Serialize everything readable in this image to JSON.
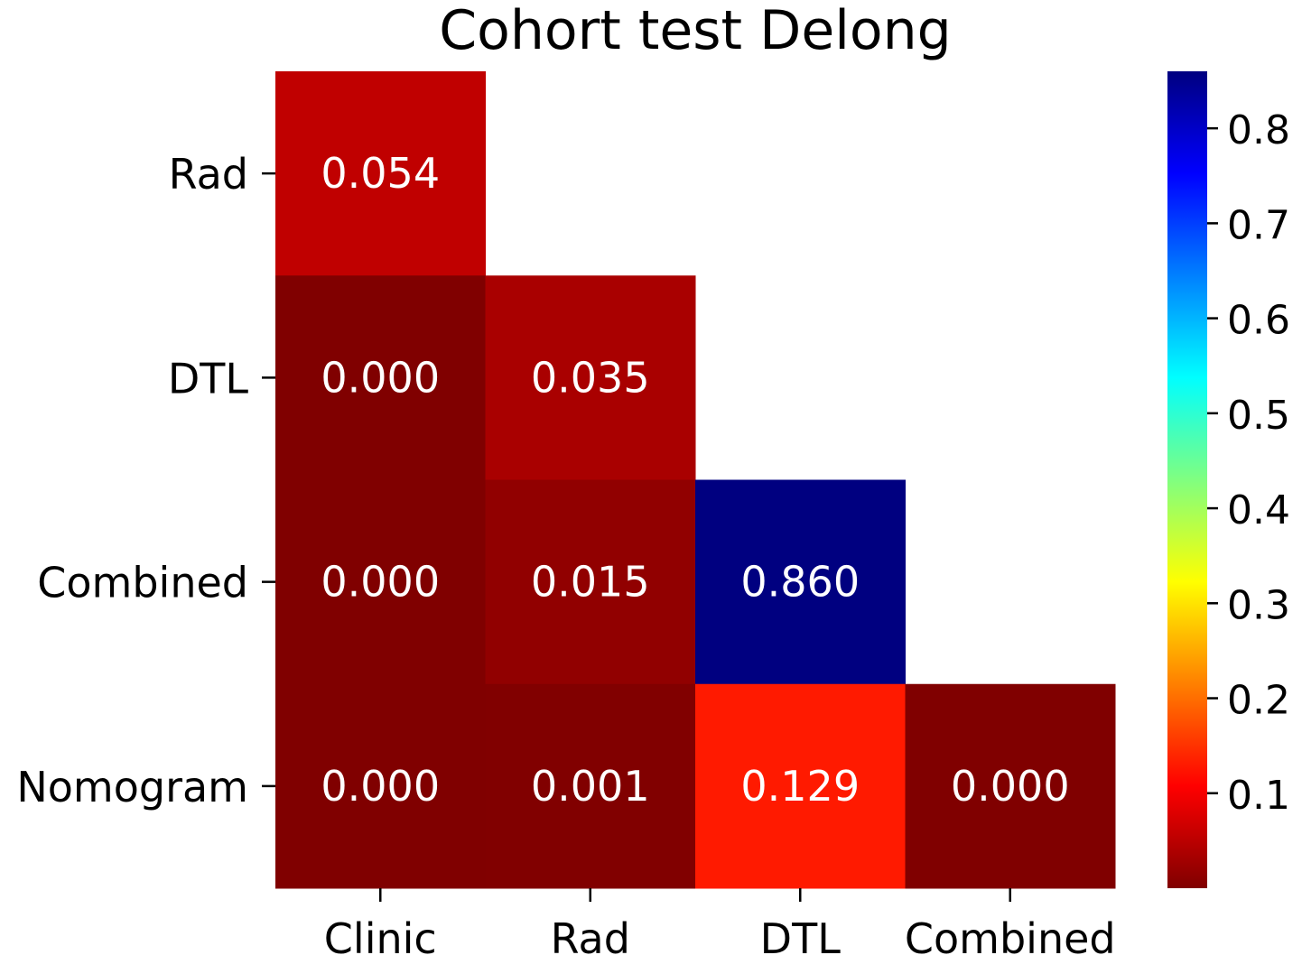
{
  "chart_data": {
    "type": "heatmap",
    "title": "Cohort test Delong",
    "row_labels": [
      "Rad",
      "DTL",
      "Combined",
      "Nomogram"
    ],
    "col_labels": [
      "Clinic",
      "Rad",
      "DTL",
      "Combined"
    ],
    "cells": [
      {
        "row": 0,
        "col": 0,
        "value": 0.054,
        "label": "0.054"
      },
      {
        "row": 1,
        "col": 0,
        "value": 0.0,
        "label": "0.000"
      },
      {
        "row": 1,
        "col": 1,
        "value": 0.035,
        "label": "0.035"
      },
      {
        "row": 2,
        "col": 0,
        "value": 0.0,
        "label": "0.000"
      },
      {
        "row": 2,
        "col": 1,
        "value": 0.015,
        "label": "0.015"
      },
      {
        "row": 2,
        "col": 2,
        "value": 0.86,
        "label": "0.860"
      },
      {
        "row": 3,
        "col": 0,
        "value": 0.0,
        "label": "0.000"
      },
      {
        "row": 3,
        "col": 1,
        "value": 0.001,
        "label": "0.001"
      },
      {
        "row": 3,
        "col": 2,
        "value": 0.129,
        "label": "0.129"
      },
      {
        "row": 3,
        "col": 3,
        "value": 0.0,
        "label": "0.000"
      }
    ],
    "colormap": "jet_r",
    "colorbar": {
      "min": 0.0,
      "max": 0.86,
      "ticks": [
        0.1,
        0.2,
        0.3,
        0.4,
        0.5,
        0.6,
        0.7,
        0.8
      ],
      "tick_labels": [
        "0.1",
        "0.2",
        "0.3",
        "0.4",
        "0.5",
        "0.6",
        "0.7",
        "0.8"
      ]
    }
  }
}
